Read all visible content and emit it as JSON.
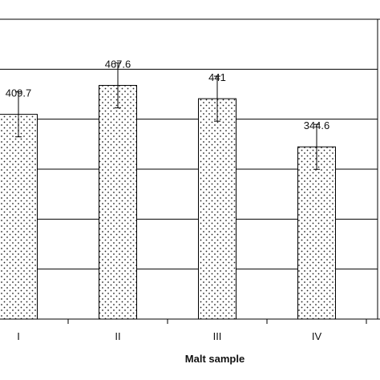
{
  "chart_data": {
    "type": "bar",
    "categories": [
      "I",
      "II",
      "III",
      "IV"
    ],
    "series": [
      {
        "values": [
          409.7,
          467.6,
          441,
          344.6
        ],
        "value_labels": [
          "409.7",
          "467.6",
          "441",
          "344.6"
        ],
        "error": [
          45,
          45,
          45,
          45
        ]
      }
    ],
    "title": "",
    "xlabel": "Malt sample",
    "ylabel": "",
    "ylim": [
      0,
      600
    ],
    "grid": true,
    "bar_pattern": "dotted",
    "colors": {
      "bar_fill": "#ffffff",
      "bar_dots": "#222222",
      "bar_stroke": "#000000",
      "grid": "#000000",
      "axis": "#000000",
      "error_bar": "#000000"
    }
  }
}
